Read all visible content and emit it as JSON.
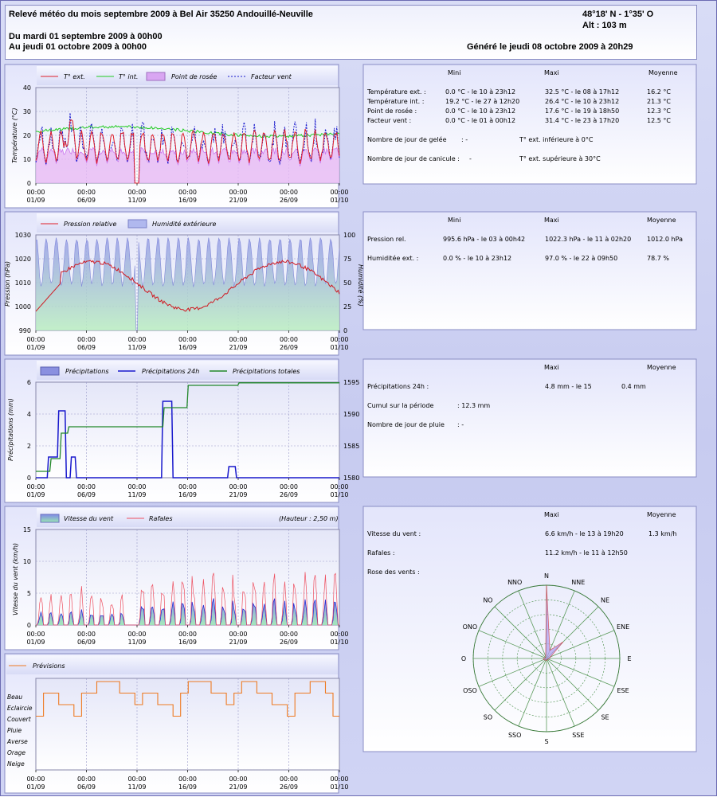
{
  "header": {
    "title": "Relevé météo du mois septembre 2009 à Bel Air 35250 Andouillé-Neuville",
    "coords": "48°18' N - 1°35' O",
    "alt": "Alt : 103 m",
    "from": "Du mardi 01 septembre 2009 à 00h00",
    "to": "Au jeudi 01 octobre 2009 à 00h00",
    "generated": "Généré le jeudi 08 octobre 2009 à 20h29"
  },
  "x_ticks": {
    "times": [
      "00:00",
      "00:00",
      "00:00",
      "00:00",
      "00:00",
      "00:00",
      "00:00"
    ],
    "dates": [
      "01/09",
      "06/09",
      "11/09",
      "16/09",
      "21/09",
      "26/09",
      "01/10"
    ]
  },
  "charts": {
    "temp": {
      "legend": [
        "T° ext.",
        "T° int.",
        "Point de rosée",
        "Facteur vent"
      ],
      "ylabel": "Température (°C)",
      "yticks": [
        "40",
        "30",
        "20",
        "10",
        "0"
      ],
      "colors": {
        "ext": "#e0202a",
        "int": "#22cc22",
        "dew": "#cc77ee",
        "wind": "#1818cc"
      }
    },
    "press": {
      "legend": [
        "Pression relative",
        "Humidité extérieure"
      ],
      "ylabel": "Pression (hPa)",
      "ylabel2": "Humidité (%)",
      "yticks": [
        "1030",
        "1020",
        "1010",
        "1000",
        "990"
      ],
      "yticks2": [
        "100",
        "75",
        "50",
        "25",
        "0"
      ]
    },
    "rain": {
      "legend": [
        "Précipitations",
        "Précipitations 24h",
        "Précipitations totales"
      ],
      "ylabel": "Précipitations (mm)",
      "yticks": [
        "6",
        "4",
        "2",
        "0"
      ],
      "yticks2": [
        "1595",
        "1590",
        "1585",
        "1580"
      ]
    },
    "wind": {
      "legend": [
        "Vitesse du vent",
        "Rafales"
      ],
      "extra": "(Hauteur : 2,50 m)",
      "ylabel": "Vitesse du vent (km/h)",
      "yticks": [
        "15",
        "10",
        "5",
        "0"
      ]
    },
    "forecast": {
      "legend": [
        "Prévisions"
      ],
      "levels": [
        "Beau",
        "Eclaircie",
        "Couvert",
        "Pluie",
        "Averse",
        "Orage",
        "Neige"
      ]
    }
  },
  "tables": {
    "temp": {
      "cols": [
        "Mini",
        "Maxi",
        "Moyenne"
      ],
      "rows": [
        {
          "label": "Température ext. :",
          "min": "0.0 °C - le 10 à 23h12",
          "max": "32.5 °C - le 08 à 17h12",
          "avg": "16.2 °C"
        },
        {
          "label": "Température int. :",
          "min": "19.2 °C - le 27 à 12h20",
          "max": "26.4 °C - le 10 à 23h12",
          "avg": "21.3 °C"
        },
        {
          "label": "Point de rosée :",
          "min": "0.0 °C - le 10 à 23h12",
          "max": "17.6 °C - le 19 à 18h50",
          "avg": "12.3 °C"
        },
        {
          "label": "Facteur vent :",
          "min": "0.0 °C - le 01 à 00h12",
          "max": "31.4 °C - le 23 à 17h20",
          "avg": "12.5 °C"
        }
      ],
      "gel_label": "Nombre de jour de gelée",
      "gel_val": ": -",
      "gel_note": "T° ext. inférieure à 0°C",
      "can_label": "Nombre de jour de canicule :",
      "can_val": "-",
      "can_note": "T° ext. supérieure à 30°C"
    },
    "press": {
      "cols": [
        "Mini",
        "Maxi",
        "Moyenne"
      ],
      "rows": [
        {
          "label": "Pression rel.",
          "min": "995.6 hPa - le 03 à 00h42",
          "max": "1022.3 hPa - le 11 à 02h20",
          "avg": "1012.0 hPa"
        },
        {
          "label": "Humiditée ext. :",
          "min": "0.0 % - le 10 à 23h12",
          "max": "97.0 % - le 22 à 09h50",
          "avg": "78.7 %"
        }
      ]
    },
    "rain": {
      "cols": [
        "Maxi",
        "Moyenne"
      ],
      "r24_label": "Précipitations 24h :",
      "r24_max": "4.8 mm - le 15",
      "r24_avg": "0.4 mm",
      "cum_label": "Cumul sur la période",
      "cum_val": ": 12.3 mm",
      "days_label": "Nombre de jour de pluie",
      "days_val": ": -"
    },
    "wind": {
      "cols": [
        "Maxi",
        "Moyenne"
      ],
      "speed_label": "Vitesse du vent :",
      "speed_max": "6.6 km/h - le 13 à 19h20",
      "speed_avg": "1.3 km/h",
      "gust_label": "Rafales :",
      "gust_max": "11.2 km/h - le 11 à 12h50",
      "rose_label": "Rose des vents :",
      "directions": [
        "N",
        "NNE",
        "NE",
        "ENE",
        "E",
        "ESE",
        "SE",
        "SSE",
        "S",
        "SSO",
        "SO",
        "OSO",
        "O",
        "ONO",
        "NO",
        "NNO"
      ],
      "rose_values": [
        1.0,
        0.12,
        0.32,
        0.06,
        0.04,
        0.02,
        0.02,
        0.02,
        0.03,
        0.02,
        0.03,
        0.04,
        0.04,
        0.02,
        0.02,
        0.03
      ]
    }
  }
}
